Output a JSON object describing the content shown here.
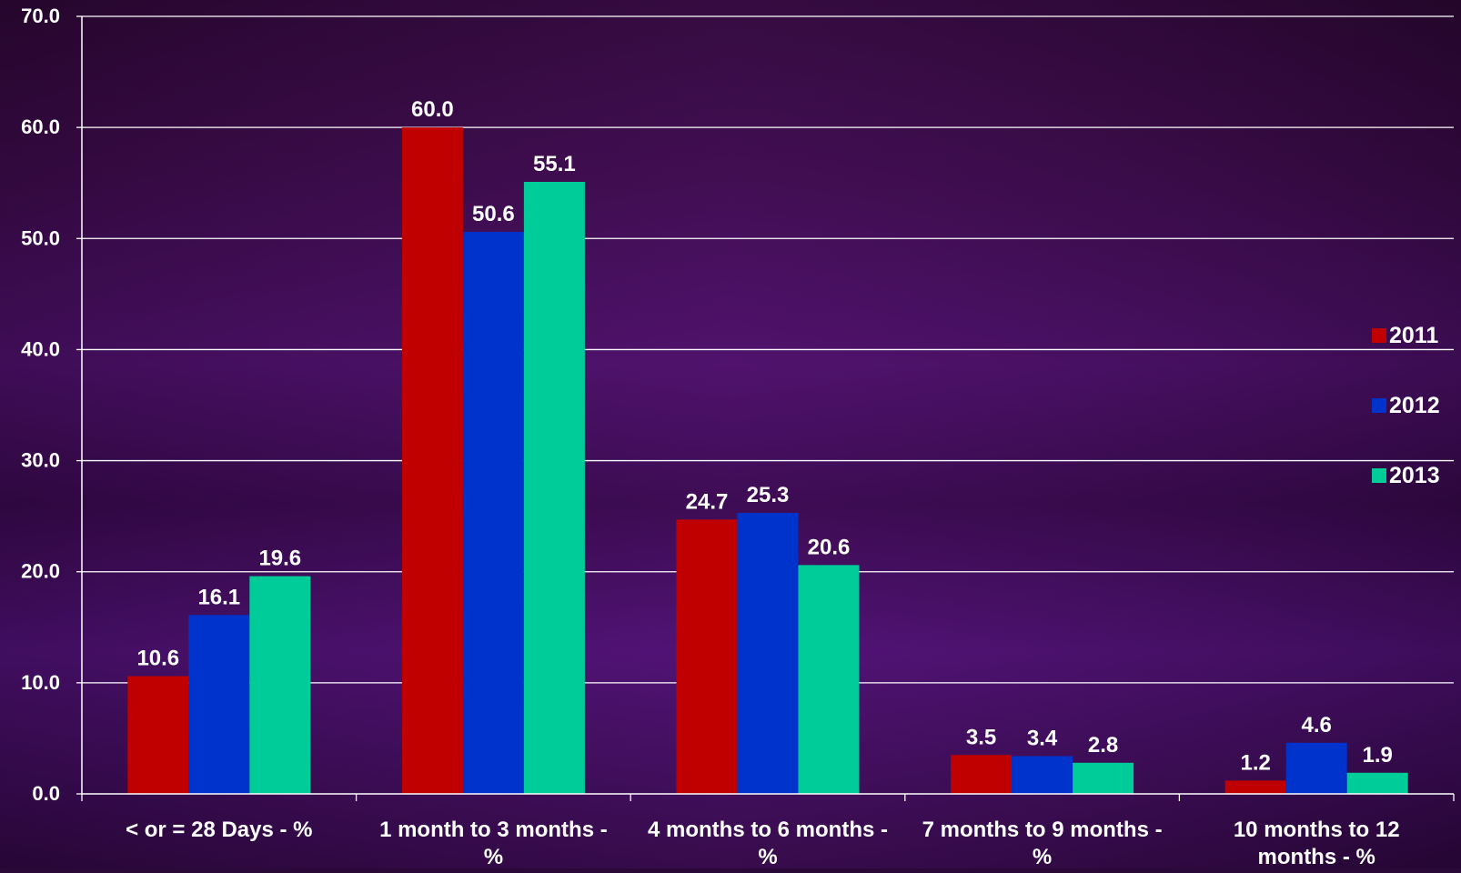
{
  "chart_data": {
    "type": "bar",
    "title": "",
    "xlabel": "",
    "ylabel": "",
    "categories": [
      [
        "< or = 28 Days - %"
      ],
      [
        "1 month to 3 months -",
        "%"
      ],
      [
        "4 months to 6 months -",
        "%"
      ],
      [
        "7 months to 9 months -",
        "%"
      ],
      [
        "10 months to 12",
        "months - %"
      ]
    ],
    "series": [
      {
        "name": "2011",
        "color": "#c00000",
        "values": [
          10.6,
          60.0,
          24.7,
          3.5,
          1.2
        ]
      },
      {
        "name": "2012",
        "color": "#0033cc",
        "values": [
          16.1,
          50.6,
          25.3,
          3.4,
          4.6
        ]
      },
      {
        "name": "2013",
        "color": "#00cc99",
        "values": [
          19.6,
          55.1,
          20.6,
          2.8,
          1.9
        ]
      }
    ],
    "ylim": [
      0,
      70
    ],
    "yticks": [
      "0.0",
      "10.0",
      "20.0",
      "30.0",
      "40.0",
      "50.0",
      "60.0",
      "70.0"
    ],
    "grid": true,
    "legend_position": "right"
  }
}
